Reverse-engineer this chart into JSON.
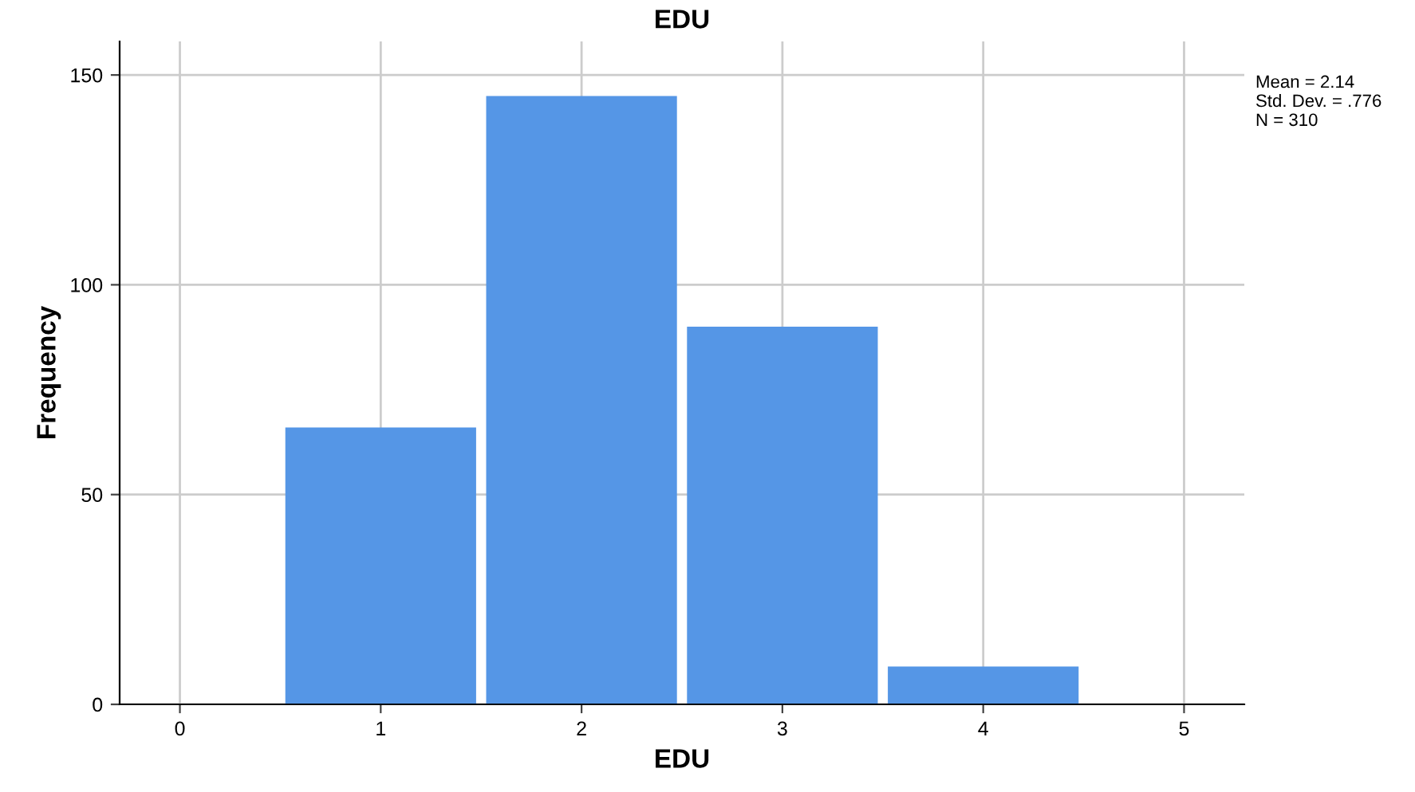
{
  "chart_data": {
    "type": "histogram",
    "title": "EDU",
    "xlabel": "EDU",
    "ylabel": "Frequency",
    "bins": [
      0.5,
      1.5,
      2.5,
      3.5,
      4.5
    ],
    "values": [
      66,
      145,
      90,
      9
    ],
    "color": "#5596e6",
    "xlim": [
      -0.3,
      5.3
    ],
    "ylim": [
      0,
      158
    ],
    "xticks": [
      0,
      1,
      2,
      3,
      4,
      5
    ],
    "yticks": [
      0,
      50,
      100,
      150
    ],
    "grid": true,
    "annotations": [
      "Mean = 2.14\nStd. Dev. = .776\nN = 310"
    ]
  }
}
